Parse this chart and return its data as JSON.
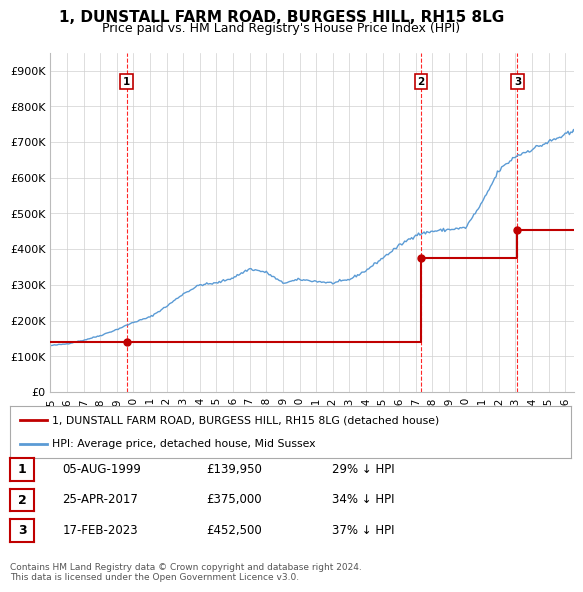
{
  "title": "1, DUNSTALL FARM ROAD, BURGESS HILL, RH15 8LG",
  "subtitle": "Price paid vs. HM Land Registry's House Price Index (HPI)",
  "xlim": [
    1995.0,
    2026.5
  ],
  "ylim": [
    0,
    950000
  ],
  "yticks": [
    0,
    100000,
    200000,
    300000,
    400000,
    500000,
    600000,
    700000,
    800000,
    900000
  ],
  "ytick_labels": [
    "£0",
    "£100K",
    "£200K",
    "£300K",
    "£400K",
    "£500K",
    "£600K",
    "£700K",
    "£800K",
    "£900K"
  ],
  "xticks": [
    1995,
    1996,
    1997,
    1998,
    1999,
    2000,
    2001,
    2002,
    2003,
    2004,
    2005,
    2006,
    2007,
    2008,
    2009,
    2010,
    2011,
    2012,
    2013,
    2014,
    2015,
    2016,
    2017,
    2018,
    2019,
    2020,
    2021,
    2022,
    2023,
    2024,
    2025,
    2026
  ],
  "sales": [
    {
      "date_num": 1999.586,
      "price": 139950,
      "label": "1",
      "date_str": "05-AUG-1999",
      "pct": "29% ↓ HPI"
    },
    {
      "date_num": 2017.317,
      "price": 375000,
      "label": "2",
      "date_str": "25-APR-2017",
      "pct": "34% ↓ HPI"
    },
    {
      "date_num": 2023.124,
      "price": 452500,
      "label": "3",
      "date_str": "17-FEB-2023",
      "pct": "37% ↓ HPI"
    }
  ],
  "hpi_base_prices": {
    "1995": 130000,
    "1996": 135000,
    "1997": 145000,
    "1998": 158000,
    "1999": 175000,
    "2000": 195000,
    "2001": 210000,
    "2002": 240000,
    "2003": 275000,
    "2004": 300000,
    "2005": 305000,
    "2006": 320000,
    "2007": 345000,
    "2008": 335000,
    "2009": 305000,
    "2010": 315000,
    "2011": 310000,
    "2012": 305000,
    "2013": 315000,
    "2014": 340000,
    "2015": 375000,
    "2016": 410000,
    "2017": 440000,
    "2018": 450000,
    "2019": 455000,
    "2020": 460000,
    "2021": 530000,
    "2022": 620000,
    "2023": 660000,
    "2024": 680000,
    "2025": 700000,
    "2026": 720000
  },
  "hpi_color": "#5b9bd5",
  "price_color": "#c00000",
  "vline_color": "#ff0000",
  "grid_color": "#d0d0d0",
  "bg_color": "#ffffff",
  "legend_label_price": "1, DUNSTALL FARM ROAD, BURGESS HILL, RH15 8LG (detached house)",
  "legend_label_hpi": "HPI: Average price, detached house, Mid Sussex",
  "footer1": "Contains HM Land Registry data © Crown copyright and database right 2024.",
  "footer2": "This data is licensed under the Open Government Licence v3.0.",
  "table_rows": [
    {
      "num": "1",
      "date": "05-AUG-1999",
      "price": "£139,950",
      "pct": "29% ↓ HPI"
    },
    {
      "num": "2",
      "date": "25-APR-2017",
      "price": "£375,000",
      "pct": "34% ↓ HPI"
    },
    {
      "num": "3",
      "date": "17-FEB-2023",
      "price": "£452,500",
      "pct": "37% ↓ HPI"
    }
  ]
}
